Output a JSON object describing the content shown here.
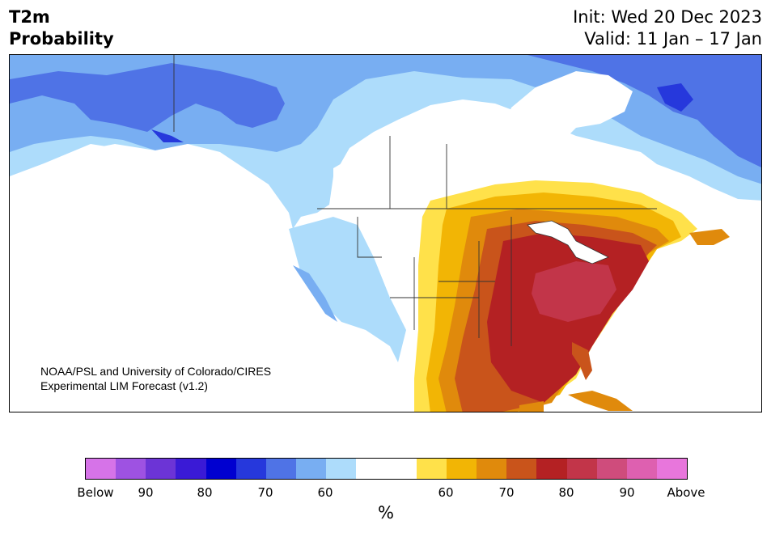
{
  "header": {
    "title_line1": "T2m",
    "title_line2": "Probability",
    "init_text": "Init: Wed 20 Dec 2023",
    "valid_text": "Valid: 11 Jan – 17 Jan"
  },
  "map": {
    "credit_line1": "NOAA/PSL and University of Colorado/CIRES",
    "credit_line2": "Experimental LIM Forecast (v1.2)"
  },
  "colorbar": {
    "colors": [
      "#d673e8",
      "#9e52e2",
      "#6c34d6",
      "#3a1ad6",
      "#0000d0",
      "#2638dc",
      "#4f73e6",
      "#78aef2",
      "#addcfb",
      "#ffffff",
      "#ffffff",
      "#ffe14a",
      "#f2b505",
      "#e08a0c",
      "#c9541b",
      "#b42123",
      "#c23549",
      "#cf4c7c",
      "#de60b0",
      "#e876dc"
    ],
    "tick_labels": [
      "Below",
      "90",
      "80",
      "70",
      "60",
      "60",
      "70",
      "80",
      "90",
      "Above"
    ],
    "unit_label": "%"
  }
}
